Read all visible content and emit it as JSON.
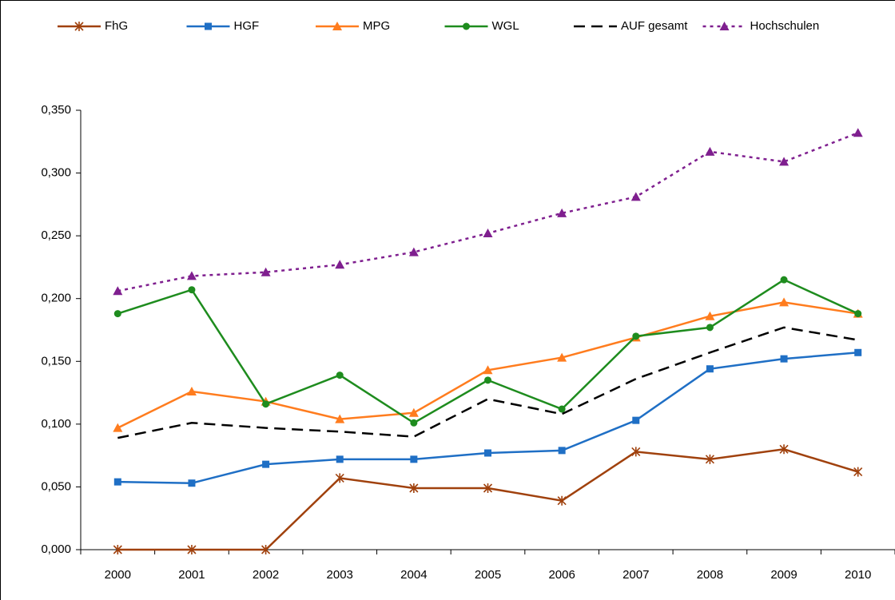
{
  "chart_data": {
    "type": "line",
    "categories": [
      "2000",
      "2001",
      "2002",
      "2003",
      "2004",
      "2005",
      "2006",
      "2007",
      "2008",
      "2009",
      "2010"
    ],
    "series": [
      {
        "name": "FhG",
        "color": "#a0410d",
        "marker": "star",
        "dash": "solid",
        "values": [
          0,
          0,
          0,
          0.057,
          0.049,
          0.049,
          0.039,
          0.078,
          0.072,
          0.08,
          0.062
        ]
      },
      {
        "name": "HGF",
        "color": "#1f6fc5",
        "marker": "square",
        "dash": "solid",
        "values": [
          0.054,
          0.053,
          0.068,
          0.072,
          0.072,
          0.077,
          0.079,
          0.103,
          0.144,
          0.152,
          0.157
        ]
      },
      {
        "name": "MPG",
        "color": "#ff7c1e",
        "marker": "triangle",
        "dash": "solid",
        "values": [
          0.097,
          0.126,
          0.118,
          0.104,
          0.109,
          0.143,
          0.153,
          0.169,
          0.186,
          0.197,
          0.188
        ]
      },
      {
        "name": "WGL",
        "color": "#1e8c1e",
        "marker": "circle",
        "dash": "solid",
        "values": [
          0.188,
          0.207,
          0.116,
          0.139,
          0.101,
          0.135,
          0.112,
          0.17,
          0.177,
          0.215,
          0.188
        ]
      },
      {
        "name": "AUF gesamt",
        "color": "#000000",
        "marker": "none",
        "dash": "dashed",
        "values": [
          0.089,
          0.101,
          0.097,
          0.094,
          0.09,
          0.12,
          0.108,
          0.136,
          0.157,
          0.177,
          0.167
        ]
      },
      {
        "name": "Hochschulen",
        "color": "#7f1f8f",
        "marker": "triangle",
        "dash": "dotted",
        "values": [
          0.206,
          0.218,
          0.221,
          0.227,
          0.237,
          0.252,
          0.268,
          0.281,
          0.317,
          0.309,
          0.332
        ]
      }
    ],
    "ylim": [
      0,
      0.35
    ],
    "yticks": [
      {
        "value": 0,
        "label": "0,000"
      },
      {
        "value": 0.05,
        "label": "0,050"
      },
      {
        "value": 0.1,
        "label": "0,100"
      },
      {
        "value": 0.15,
        "label": "0,150"
      },
      {
        "value": 0.2,
        "label": "0,200"
      },
      {
        "value": 0.25,
        "label": "0,250"
      },
      {
        "value": 0.3,
        "label": "0,300"
      },
      {
        "value": 0.35,
        "label": "0,350"
      }
    ],
    "grid": false,
    "legend": "top"
  }
}
